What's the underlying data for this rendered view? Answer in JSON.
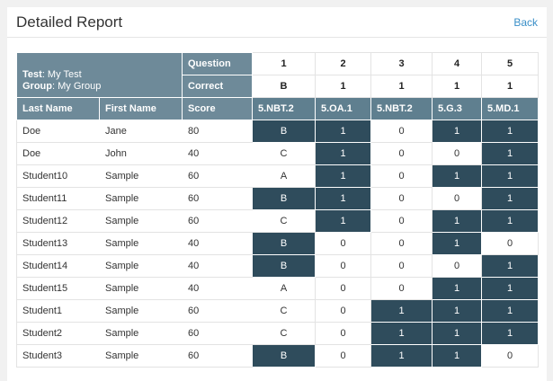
{
  "header": {
    "title": "Detailed Report",
    "back_label": "Back"
  },
  "info": {
    "test_label": "Test",
    "test_value": ": My Test",
    "group_label": "Group",
    "group_value": ": My Group",
    "question_label": "Question",
    "correct_label": "Correct"
  },
  "questions": [
    "1",
    "2",
    "3",
    "4",
    "5"
  ],
  "correct_answers": [
    "B",
    "1",
    "1",
    "1",
    "1"
  ],
  "columns": {
    "last_name": "Last Name",
    "first_name": "First Name",
    "score": "Score",
    "standards": [
      "5.NBT.2",
      "5.OA.1",
      "5.NBT.2",
      "5.G.3",
      "5.MD.1"
    ]
  },
  "colors": {
    "header": "#6e8a99",
    "highlight": "#2f4c5c",
    "link": "#3a8fc8"
  },
  "rows": [
    {
      "last": "Doe",
      "first": "Jane",
      "score": "80",
      "answers": [
        "B",
        "1",
        "0",
        "1",
        "1"
      ],
      "hits": [
        1,
        1,
        0,
        1,
        1
      ]
    },
    {
      "last": "Doe",
      "first": "John",
      "score": "40",
      "answers": [
        "C",
        "1",
        "0",
        "0",
        "1"
      ],
      "hits": [
        0,
        1,
        0,
        0,
        1
      ]
    },
    {
      "last": "Student10",
      "first": "Sample",
      "score": "60",
      "answers": [
        "A",
        "1",
        "0",
        "1",
        "1"
      ],
      "hits": [
        0,
        1,
        0,
        1,
        1
      ]
    },
    {
      "last": "Student11",
      "first": "Sample",
      "score": "60",
      "answers": [
        "B",
        "1",
        "0",
        "0",
        "1"
      ],
      "hits": [
        1,
        1,
        0,
        0,
        1
      ]
    },
    {
      "last": "Student12",
      "first": "Sample",
      "score": "60",
      "answers": [
        "C",
        "1",
        "0",
        "1",
        "1"
      ],
      "hits": [
        0,
        1,
        0,
        1,
        1
      ]
    },
    {
      "last": "Student13",
      "first": "Sample",
      "score": "40",
      "answers": [
        "B",
        "0",
        "0",
        "1",
        "0"
      ],
      "hits": [
        1,
        0,
        0,
        1,
        0
      ]
    },
    {
      "last": "Student14",
      "first": "Sample",
      "score": "40",
      "answers": [
        "B",
        "0",
        "0",
        "0",
        "1"
      ],
      "hits": [
        1,
        0,
        0,
        0,
        1
      ]
    },
    {
      "last": "Student15",
      "first": "Sample",
      "score": "40",
      "answers": [
        "A",
        "0",
        "0",
        "1",
        "1"
      ],
      "hits": [
        0,
        0,
        0,
        1,
        1
      ]
    },
    {
      "last": "Student1",
      "first": "Sample",
      "score": "60",
      "answers": [
        "C",
        "0",
        "1",
        "1",
        "1"
      ],
      "hits": [
        0,
        0,
        1,
        1,
        1
      ]
    },
    {
      "last": "Student2",
      "first": "Sample",
      "score": "60",
      "answers": [
        "C",
        "0",
        "1",
        "1",
        "1"
      ],
      "hits": [
        0,
        0,
        1,
        1,
        1
      ]
    },
    {
      "last": "Student3",
      "first": "Sample",
      "score": "60",
      "answers": [
        "B",
        "0",
        "1",
        "1",
        "0"
      ],
      "hits": [
        1,
        0,
        1,
        1,
        0
      ]
    }
  ]
}
